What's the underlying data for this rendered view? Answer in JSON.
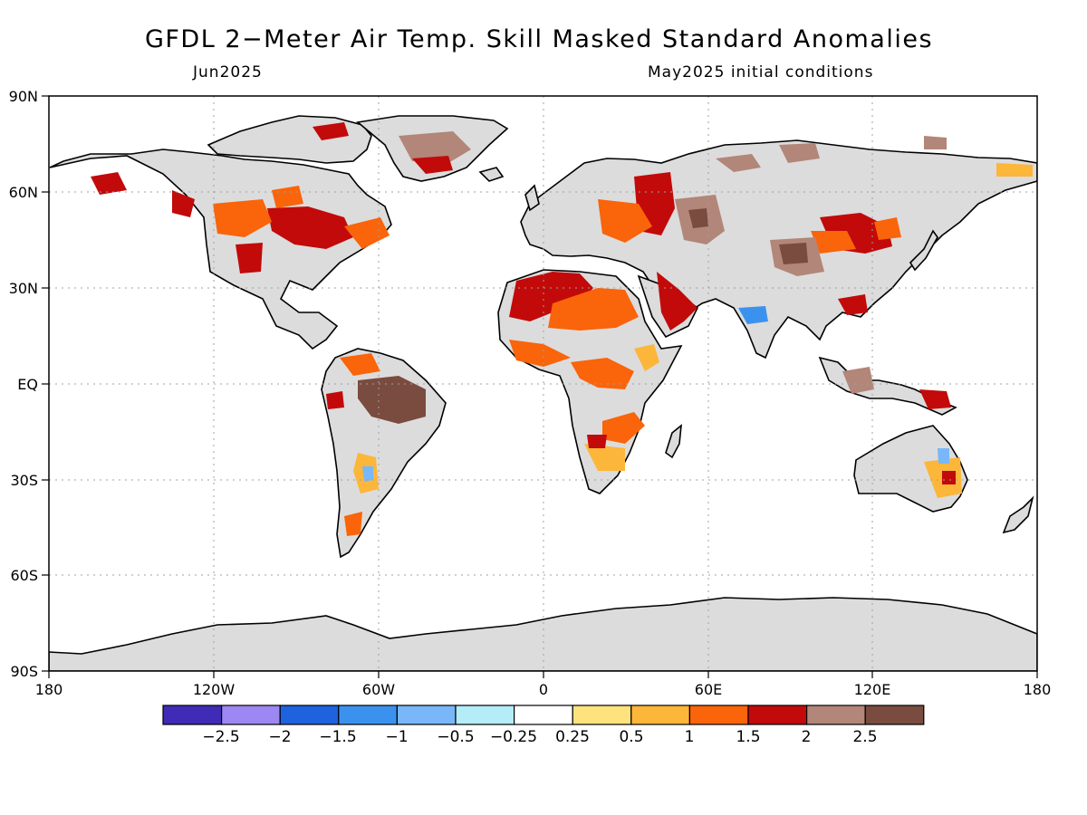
{
  "title": "GFDL 2−Meter Air Temp. Skill Masked Standard Anomalies",
  "valid_month": "Jun2025",
  "init_text": "May2025 initial conditions",
  "lat_labels": [
    "90N",
    "60N",
    "30N",
    "EQ",
    "30S",
    "60S",
    "90S"
  ],
  "lon_labels": [
    "180",
    "120W",
    "60W",
    "0",
    "60E",
    "120E",
    "180"
  ],
  "colorbar": {
    "colors": [
      "#3f2bb5",
      "#9d87f2",
      "#1f62dd",
      "#3b92ee",
      "#7ab7f8",
      "#b4ecf8",
      "#ffffff",
      "#fde27d",
      "#fcb63a",
      "#fa640a",
      "#c20a0a",
      "#b28679",
      "#7a4b3f"
    ],
    "labels": [
      "−2.5",
      "−2",
      "−1.5",
      "−1",
      "−0.5",
      "−0.25",
      "0.25",
      "0.5",
      "1",
      "1.5",
      "2",
      "2.5"
    ]
  },
  "legend_colors": {
    "masked_land": "#dcdcdc",
    "coastline": "#000000",
    "grid": "#a0a0a0"
  }
}
